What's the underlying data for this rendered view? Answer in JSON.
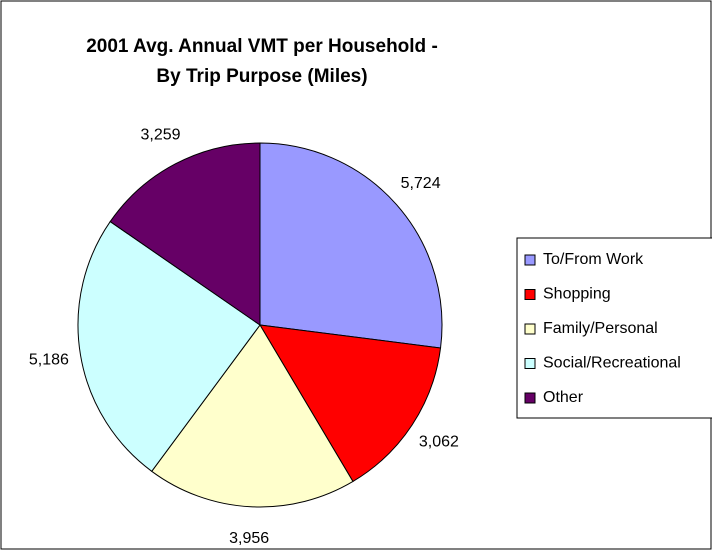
{
  "chart_data": {
    "type": "pie",
    "title": [
      "2001 Avg. Annual VMT per Household -",
      "By Trip Purpose (Miles)"
    ],
    "categories": [
      "To/From Work",
      "Shopping",
      "Family/Personal",
      "Social/Recreational",
      "Other"
    ],
    "values": [
      5724,
      3062,
      3956,
      5186,
      3259
    ],
    "value_labels": [
      "5,724",
      "3,062",
      "3,956",
      "5,186",
      "3,259"
    ],
    "colors": [
      "#9999ff",
      "#ff0000",
      "#ffffcc",
      "#ccffff",
      "#660066"
    ],
    "legend": "right"
  }
}
